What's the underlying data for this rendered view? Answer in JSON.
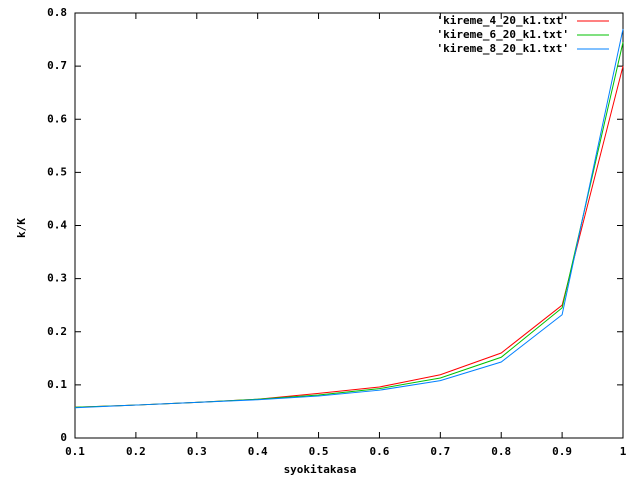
{
  "chart_data": {
    "type": "line",
    "xlabel": "syokitakasa",
    "ylabel": "k/K",
    "x": [
      0.1,
      0.2,
      0.3,
      0.4,
      0.5,
      0.6,
      0.7,
      0.8,
      0.9,
      1
    ],
    "series": [
      {
        "name": "'kireme_4_20_k1.txt'",
        "color": "#ff0000",
        "values": [
          0.058,
          0.062,
          0.067,
          0.073,
          0.084,
          0.096,
          0.119,
          0.16,
          0.25,
          0.7
        ]
      },
      {
        "name": "'kireme_6_20_k1.txt'",
        "color": "#00c000",
        "values": [
          0.058,
          0.062,
          0.067,
          0.073,
          0.081,
          0.093,
          0.113,
          0.152,
          0.245,
          0.745
        ]
      },
      {
        "name": "'kireme_8_20_k1.txt'",
        "color": "#0080ff",
        "values": [
          0.057,
          0.062,
          0.067,
          0.072,
          0.079,
          0.09,
          0.108,
          0.143,
          0.232,
          0.77
        ]
      }
    ],
    "xlim": [
      0.1,
      1
    ],
    "ylim": [
      0,
      0.8
    ],
    "xticks": [
      0.1,
      0.2,
      0.3,
      0.4,
      0.5,
      0.6,
      0.7,
      0.8,
      0.9,
      1
    ],
    "yticks": [
      0,
      0.1,
      0.2,
      0.3,
      0.4,
      0.5,
      0.6,
      0.7,
      0.8
    ],
    "legend": "top-right",
    "grid": false
  }
}
